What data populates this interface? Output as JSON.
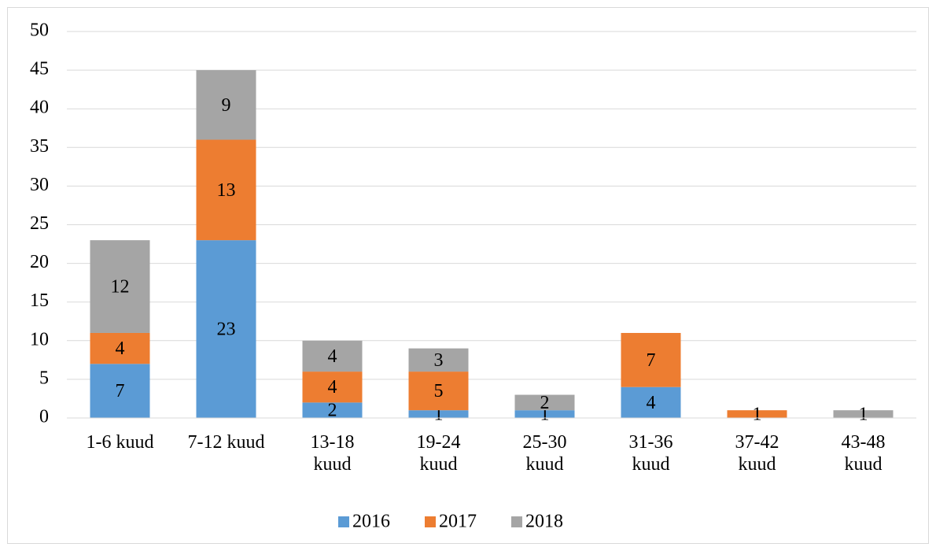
{
  "chart_data": {
    "type": "bar",
    "stacked": true,
    "categories": [
      "1-6 kuud",
      "7-12 kuud",
      "13-18 kuud",
      "19-24 kuud",
      "25-30 kuud",
      "31-36 kuud",
      "37-42 kuud",
      "43-48 kuud"
    ],
    "series": [
      {
        "name": "2016",
        "color": "#5b9bd5",
        "values": [
          7,
          23,
          2,
          1,
          1,
          4,
          null,
          null
        ]
      },
      {
        "name": "2017",
        "color": "#ed7d31",
        "values": [
          4,
          13,
          4,
          5,
          null,
          7,
          1,
          null
        ]
      },
      {
        "name": "2018",
        "color": "#a5a5a5",
        "values": [
          12,
          9,
          4,
          3,
          2,
          null,
          null,
          1
        ]
      }
    ],
    "ylim": [
      0,
      50
    ],
    "yticks": [
      0,
      5,
      10,
      15,
      20,
      25,
      30,
      35,
      40,
      45,
      50
    ],
    "grid": true,
    "legend": "bottom"
  }
}
